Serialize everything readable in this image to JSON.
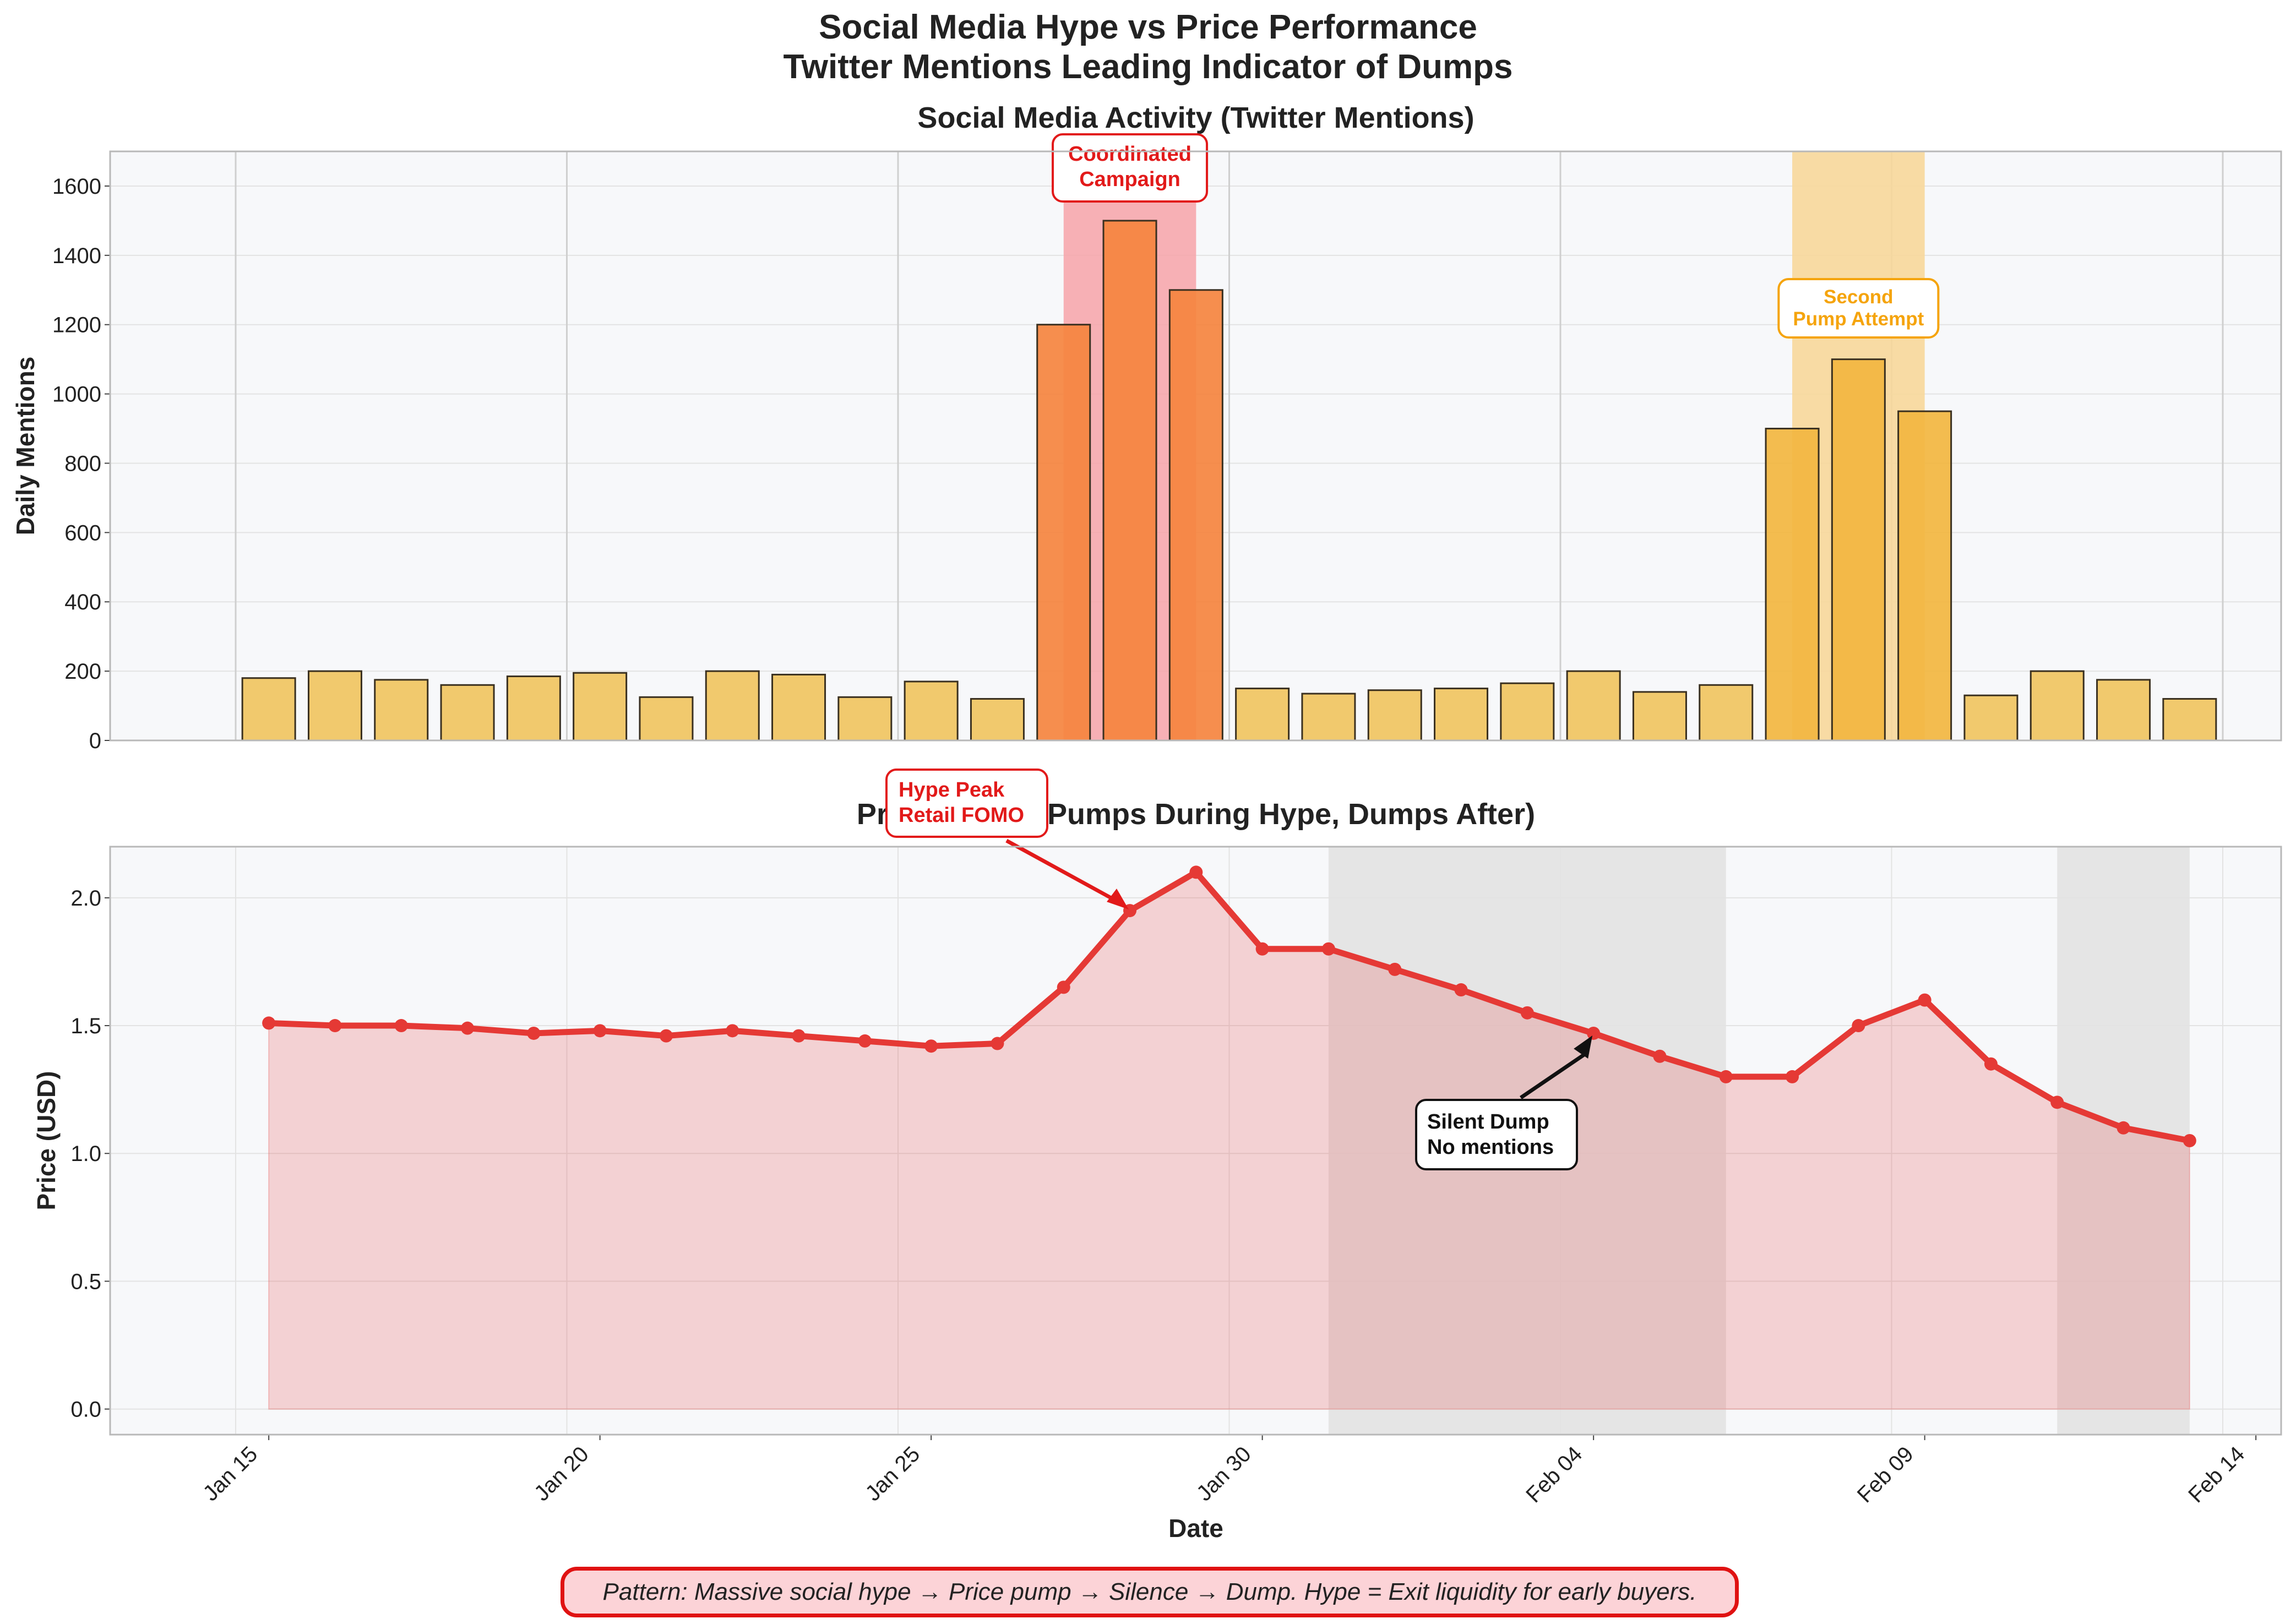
{
  "title_line1": "Social Media Hype vs Price Performance",
  "title_line2": "Twitter Mentions Leading Indicator of Dumps",
  "footer_note": "Pattern: Massive social hype → Price pump → Silence → Dump. Hype = Exit liquidity for early buyers.",
  "colors": {
    "bar": "#f0c35d",
    "bar_highlight_red": "#f5843f",
    "bar_highlight_orange": "#f2b640",
    "price_line": "#e53935",
    "price_fill": "#f5cfd0",
    "red_span": "#f7a3a8",
    "orange_span": "#f7d79a",
    "gray_span": "#e2e2e2"
  },
  "chart_data": [
    {
      "type": "bar",
      "title": "Social Media Activity (Twitter Mentions)",
      "xlabel": "",
      "ylabel": "Daily Mentions",
      "ylim": [
        0,
        1700
      ],
      "yticks": [
        "0",
        "200",
        "400",
        "600",
        "800",
        "1000",
        "1200",
        "1400",
        "1600"
      ],
      "dates": [
        "2024-01-15",
        "2024-01-16",
        "2024-01-17",
        "2024-01-18",
        "2024-01-19",
        "2024-01-20",
        "2024-01-21",
        "2024-01-22",
        "2024-01-23",
        "2024-01-24",
        "2024-01-25",
        "2024-01-26",
        "2024-01-27",
        "2024-01-28",
        "2024-01-29",
        "2024-01-30",
        "2024-01-31",
        "2024-02-01",
        "2024-02-02",
        "2024-02-03",
        "2024-02-04",
        "2024-02-05",
        "2024-02-06",
        "2024-02-07",
        "2024-02-08",
        "2024-02-09",
        "2024-02-10",
        "2024-02-11",
        "2024-02-12",
        "2024-02-13"
      ],
      "values": [
        180,
        200,
        175,
        160,
        185,
        195,
        125,
        200,
        190,
        125,
        170,
        120,
        1200,
        1500,
        1300,
        150,
        135,
        145,
        150,
        165,
        200,
        140,
        160,
        900,
        1100,
        950,
        130,
        200,
        175,
        120
      ],
      "highlight_spans": [
        {
          "label": "Coordinated\nCampaign",
          "lines": [
            "Coordinated",
            "Campaign"
          ],
          "start": "2024-01-27",
          "end": "2024-01-29",
          "color": "red"
        },
        {
          "label": "Second\nPump Attempt",
          "lines": [
            "Second",
            "Pump Attempt"
          ],
          "start": "2024-02-07",
          "end": "2024-02-09",
          "color": "orange"
        }
      ],
      "grid": true
    },
    {
      "type": "line",
      "title": "Price Action (Pumps During Hype, Dumps After)",
      "xlabel": "Date",
      "ylabel": "Price (USD)",
      "ylim": [
        -0.1,
        2.2
      ],
      "yticks": [
        "0.0",
        "0.5",
        "1.0",
        "1.5",
        "2.0"
      ],
      "xticks": [
        "Jan 15",
        "Jan 20",
        "Jan 25",
        "Jan 30",
        "Feb 04",
        "Feb 09",
        "Feb 14"
      ],
      "dates": [
        "2024-01-15",
        "2024-01-16",
        "2024-01-17",
        "2024-01-18",
        "2024-01-19",
        "2024-01-20",
        "2024-01-21",
        "2024-01-22",
        "2024-01-23",
        "2024-01-24",
        "2024-01-25",
        "2024-01-26",
        "2024-01-27",
        "2024-01-28",
        "2024-01-29",
        "2024-01-30",
        "2024-01-31",
        "2024-02-01",
        "2024-02-02",
        "2024-02-03",
        "2024-02-04",
        "2024-02-05",
        "2024-02-06",
        "2024-02-07",
        "2024-02-08",
        "2024-02-09",
        "2024-02-10",
        "2024-02-11",
        "2024-02-12",
        "2024-02-13"
      ],
      "values": [
        1.51,
        1.5,
        1.5,
        1.49,
        1.47,
        1.48,
        1.46,
        1.48,
        1.46,
        1.44,
        1.42,
        1.43,
        1.65,
        1.95,
        2.1,
        1.8,
        1.8,
        1.72,
        1.64,
        1.55,
        1.47,
        1.38,
        1.3,
        1.3,
        1.5,
        1.6,
        1.35,
        1.2,
        1.1,
        1.05
      ],
      "shaded_spans": [
        {
          "start": "2024-01-31",
          "end": "2024-02-06"
        },
        {
          "start": "2024-02-11",
          "end": "2024-02-13"
        }
      ],
      "annotations": [
        {
          "text": "Hype Peak\nRetail FOMO",
          "lines": [
            "Hype Peak",
            "Retail FOMO"
          ],
          "date": "2024-01-28",
          "value": 1.95,
          "color": "red"
        },
        {
          "text": "Silent Dump\nNo mentions",
          "lines": [
            "Silent Dump",
            "No mentions"
          ],
          "date": "2024-02-04",
          "value": 1.47,
          "color": "black"
        }
      ],
      "grid": true
    }
  ]
}
